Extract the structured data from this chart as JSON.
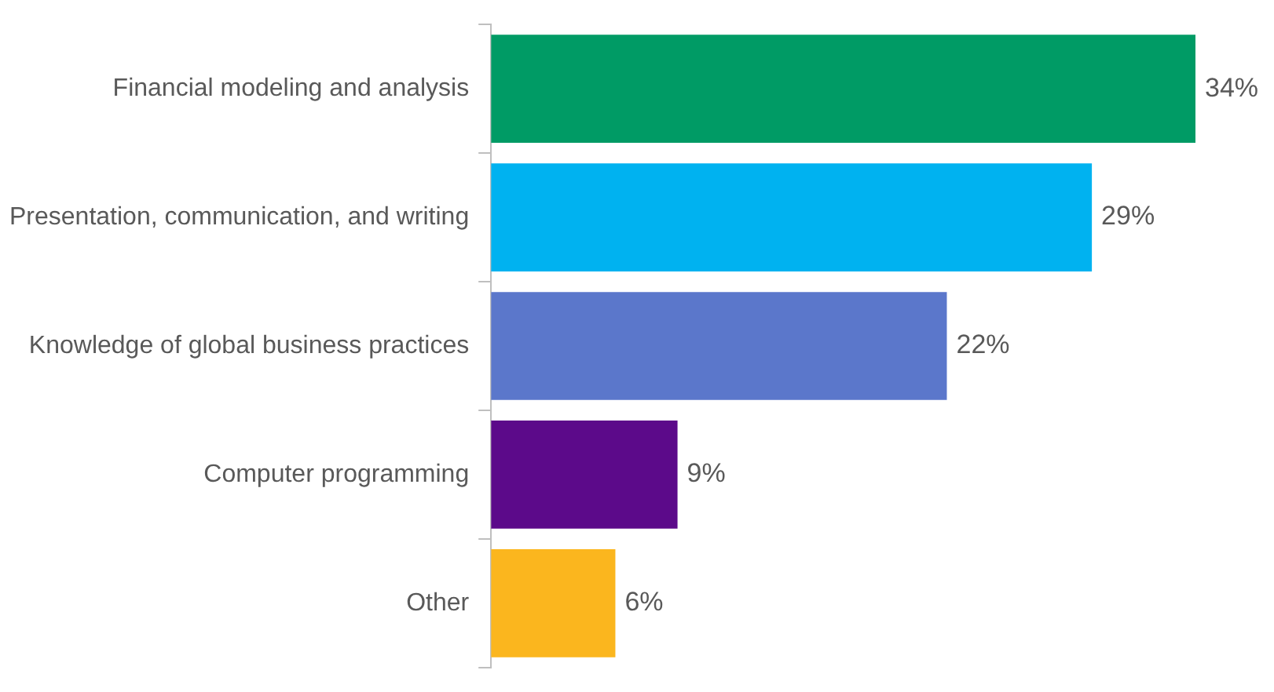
{
  "chart_data": {
    "type": "bar",
    "orientation": "horizontal",
    "categories": [
      "Financial modeling and analysis",
      "Presentation, communication, and writing",
      "Knowledge of global business practices",
      "Computer programming",
      "Other"
    ],
    "values": [
      34,
      29,
      22,
      9,
      6
    ],
    "colors": [
      "#009b65",
      "#00b2f0",
      "#5b77cb",
      "#5c0a8a",
      "#fbb61e"
    ],
    "value_labels": [
      "34%",
      "29%",
      "22%",
      "9%",
      "6%"
    ]
  }
}
